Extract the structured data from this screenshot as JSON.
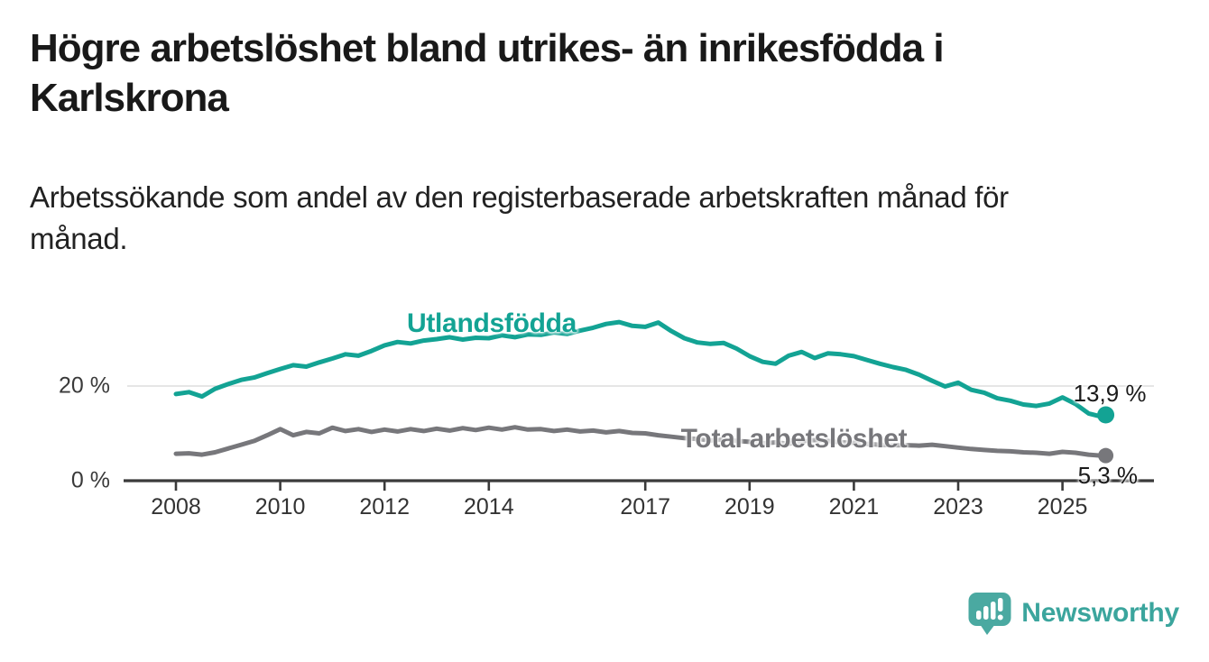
{
  "header": {
    "title": "Högre arbetslöshet bland utrikes- än inrikesfödda i\nKarlskrona",
    "subtitle": "Arbetssökande som andel av den registerbaserade arbetskraften månad för\nmånad."
  },
  "branding": {
    "name": "Newsworthy",
    "logo_icon": "speech-bubble-with-bar-chart-and-exclamation",
    "wordmark_color": "#3ba59d",
    "bubble_color": "#4aa9a1"
  },
  "colors": {
    "title_text": "#191919",
    "axis_line": "#3a3a3a",
    "axis_text": "#333333",
    "gridline": "#dedede",
    "background": "#ffffff"
  },
  "chart_data": {
    "type": "line",
    "title": "Högre arbetslöshet bland utrikes- än inrikesfödda i Karlskrona",
    "subtitle": "Arbetssökande som andel av den registerbaserade arbetskraften månad för månad.",
    "unit": "percent",
    "legend": "inline-labels-on-lines",
    "grid": "single-horizontal-gridline-at-20",
    "x_axis": {
      "range": [
        2007.7,
        2026.3
      ],
      "ticks": [
        {
          "label": "2008",
          "year": 2008
        },
        {
          "label": "2010",
          "year": 2010
        },
        {
          "label": "2012",
          "year": 2012
        },
        {
          "label": "2014",
          "year": 2014
        },
        {
          "label": "2017",
          "year": 2017
        },
        {
          "label": "2019",
          "year": 2019
        },
        {
          "label": "2021",
          "year": 2021
        },
        {
          "label": "2023",
          "year": 2023
        },
        {
          "label": "2025",
          "year": 2025
        }
      ]
    },
    "y_axis": {
      "range": [
        0,
        36
      ],
      "gridlines": [
        20
      ],
      "ticks": [
        {
          "label": "20 %",
          "value": 20
        },
        {
          "label": "0 %",
          "value": 0
        }
      ]
    },
    "series": [
      {
        "name": "Utlandsfödda",
        "color": "#13a394",
        "end_label": "13,9 %",
        "end_value": 13.9,
        "points": [
          [
            2008.0,
            18.3
          ],
          [
            2008.25,
            18.7
          ],
          [
            2008.5,
            17.8
          ],
          [
            2008.75,
            19.4
          ],
          [
            2009.0,
            20.4
          ],
          [
            2009.25,
            21.3
          ],
          [
            2009.5,
            21.8
          ],
          [
            2009.75,
            22.7
          ],
          [
            2010.0,
            23.6
          ],
          [
            2010.25,
            24.4
          ],
          [
            2010.5,
            24.1
          ],
          [
            2010.75,
            25.0
          ],
          [
            2011.0,
            25.8
          ],
          [
            2011.25,
            26.7
          ],
          [
            2011.5,
            26.4
          ],
          [
            2011.75,
            27.4
          ],
          [
            2012.0,
            28.6
          ],
          [
            2012.25,
            29.3
          ],
          [
            2012.5,
            29.0
          ],
          [
            2012.75,
            29.6
          ],
          [
            2013.0,
            29.9
          ],
          [
            2013.25,
            30.3
          ],
          [
            2013.5,
            29.8
          ],
          [
            2013.75,
            30.2
          ],
          [
            2014.0,
            30.1
          ],
          [
            2014.25,
            30.7
          ],
          [
            2014.5,
            30.3
          ],
          [
            2014.75,
            30.9
          ],
          [
            2015.0,
            30.8
          ],
          [
            2015.25,
            31.3
          ],
          [
            2015.5,
            31.0
          ],
          [
            2015.75,
            31.7
          ],
          [
            2016.0,
            32.3
          ],
          [
            2016.25,
            33.1
          ],
          [
            2016.5,
            33.5
          ],
          [
            2016.75,
            32.7
          ],
          [
            2017.0,
            32.5
          ],
          [
            2017.25,
            33.4
          ],
          [
            2017.5,
            31.6
          ],
          [
            2017.75,
            30.1
          ],
          [
            2018.0,
            29.2
          ],
          [
            2018.25,
            28.9
          ],
          [
            2018.5,
            29.1
          ],
          [
            2018.75,
            27.9
          ],
          [
            2019.0,
            26.3
          ],
          [
            2019.25,
            25.1
          ],
          [
            2019.5,
            24.7
          ],
          [
            2019.75,
            26.4
          ],
          [
            2020.0,
            27.2
          ],
          [
            2020.25,
            25.9
          ],
          [
            2020.5,
            26.9
          ],
          [
            2020.75,
            26.7
          ],
          [
            2021.0,
            26.3
          ],
          [
            2021.25,
            25.5
          ],
          [
            2021.5,
            24.7
          ],
          [
            2021.75,
            24.0
          ],
          [
            2022.0,
            23.4
          ],
          [
            2022.25,
            22.4
          ],
          [
            2022.5,
            21.1
          ],
          [
            2022.75,
            19.9
          ],
          [
            2023.0,
            20.7
          ],
          [
            2023.25,
            19.2
          ],
          [
            2023.5,
            18.6
          ],
          [
            2023.75,
            17.4
          ],
          [
            2024.0,
            16.9
          ],
          [
            2024.25,
            16.1
          ],
          [
            2024.5,
            15.8
          ],
          [
            2024.75,
            16.3
          ],
          [
            2025.0,
            17.6
          ],
          [
            2025.25,
            16.2
          ],
          [
            2025.5,
            14.2
          ],
          [
            2025.75,
            13.5
          ],
          [
            2025.83,
            13.9
          ]
        ]
      },
      {
        "name": "Total arbetslöshet",
        "color": "#77777b",
        "end_label": "5,3 %",
        "end_value": 5.3,
        "points": [
          [
            2008.0,
            5.7
          ],
          [
            2008.25,
            5.8
          ],
          [
            2008.5,
            5.5
          ],
          [
            2008.75,
            6.0
          ],
          [
            2009.0,
            6.8
          ],
          [
            2009.25,
            7.6
          ],
          [
            2009.5,
            8.4
          ],
          [
            2009.75,
            9.6
          ],
          [
            2010.0,
            10.9
          ],
          [
            2010.25,
            9.6
          ],
          [
            2010.5,
            10.3
          ],
          [
            2010.75,
            10.0
          ],
          [
            2011.0,
            11.2
          ],
          [
            2011.25,
            10.5
          ],
          [
            2011.5,
            10.9
          ],
          [
            2011.75,
            10.3
          ],
          [
            2012.0,
            10.8
          ],
          [
            2012.25,
            10.4
          ],
          [
            2012.5,
            10.9
          ],
          [
            2012.75,
            10.5
          ],
          [
            2013.0,
            11.0
          ],
          [
            2013.25,
            10.6
          ],
          [
            2013.5,
            11.1
          ],
          [
            2013.75,
            10.7
          ],
          [
            2014.0,
            11.2
          ],
          [
            2014.25,
            10.8
          ],
          [
            2014.5,
            11.3
          ],
          [
            2014.75,
            10.8
          ],
          [
            2015.0,
            10.9
          ],
          [
            2015.25,
            10.5
          ],
          [
            2015.5,
            10.8
          ],
          [
            2015.75,
            10.4
          ],
          [
            2016.0,
            10.6
          ],
          [
            2016.25,
            10.2
          ],
          [
            2016.5,
            10.5
          ],
          [
            2016.75,
            10.1
          ],
          [
            2017.0,
            10.0
          ],
          [
            2017.25,
            9.6
          ],
          [
            2017.5,
            9.3
          ],
          [
            2017.75,
            9.0
          ],
          [
            2018.0,
            8.8
          ],
          [
            2018.25,
            8.5
          ],
          [
            2018.5,
            8.7
          ],
          [
            2018.75,
            8.4
          ],
          [
            2019.0,
            8.2
          ],
          [
            2019.25,
            7.9
          ],
          [
            2019.5,
            8.1
          ],
          [
            2019.75,
            7.8
          ],
          [
            2020.0,
            8.3
          ],
          [
            2020.25,
            8.6
          ],
          [
            2020.5,
            8.4
          ],
          [
            2020.75,
            8.1
          ],
          [
            2021.0,
            8.0
          ],
          [
            2021.25,
            7.8
          ],
          [
            2021.5,
            7.6
          ],
          [
            2021.75,
            7.5
          ],
          [
            2022.0,
            7.5
          ],
          [
            2022.25,
            7.4
          ],
          [
            2022.5,
            7.6
          ],
          [
            2022.75,
            7.3
          ],
          [
            2023.0,
            7.0
          ],
          [
            2023.25,
            6.7
          ],
          [
            2023.5,
            6.5
          ],
          [
            2023.75,
            6.3
          ],
          [
            2024.0,
            6.2
          ],
          [
            2024.25,
            6.0
          ],
          [
            2024.5,
            5.9
          ],
          [
            2024.75,
            5.7
          ],
          [
            2025.0,
            6.1
          ],
          [
            2025.25,
            5.9
          ],
          [
            2025.5,
            5.5
          ],
          [
            2025.75,
            5.3
          ],
          [
            2025.83,
            5.3
          ]
        ]
      }
    ]
  }
}
